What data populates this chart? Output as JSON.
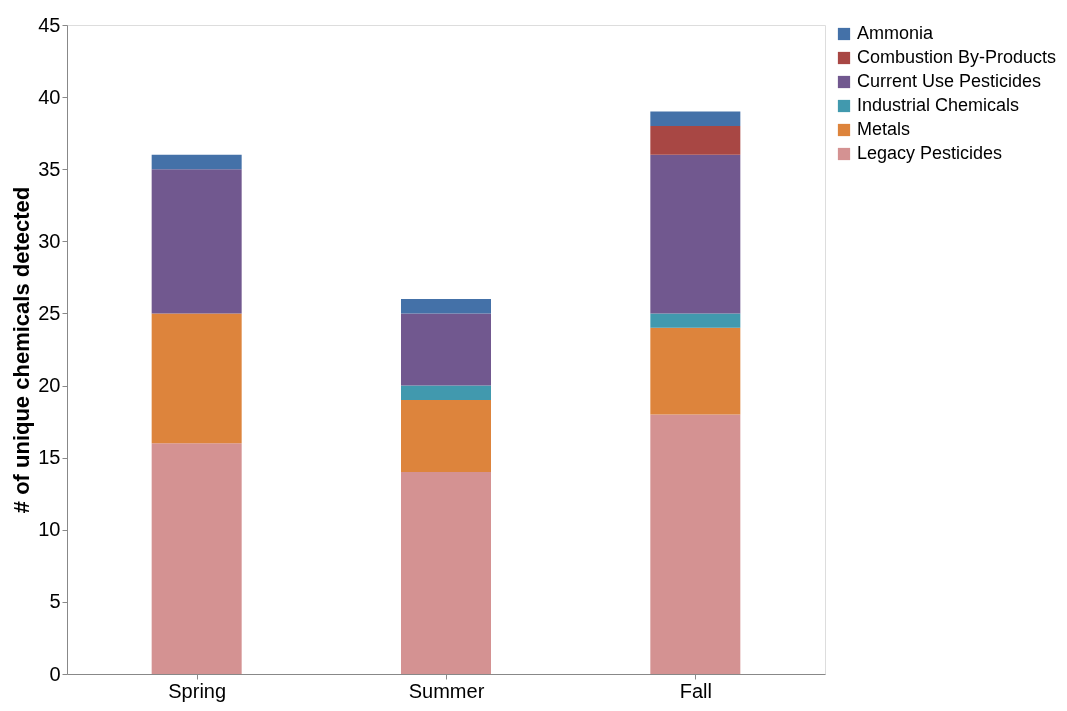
{
  "chart_data": {
    "type": "bar",
    "stacked": true,
    "ylabel": "# of unique chemicals detected",
    "categories": [
      "Spring",
      "Summer",
      "Fall"
    ],
    "series": [
      {
        "name": "Legacy Pesticides",
        "color": "#d49292",
        "values": [
          16,
          14,
          18
        ]
      },
      {
        "name": "Metals",
        "color": "#dd843c",
        "values": [
          9,
          5,
          6
        ]
      },
      {
        "name": "Industrial Chemicals",
        "color": "#4199ae",
        "values": [
          0,
          1,
          1
        ]
      },
      {
        "name": "Current Use Pesticides",
        "color": "#71588f",
        "values": [
          10,
          5,
          11
        ]
      },
      {
        "name": "Combustion By-Products",
        "color": "#a84744",
        "values": [
          0,
          0,
          2
        ]
      },
      {
        "name": "Ammonia",
        "color": "#4471a8",
        "values": [
          1,
          1,
          1
        ]
      }
    ],
    "ylim": [
      0,
      45
    ],
    "yticks": [
      0,
      5,
      10,
      15,
      20,
      25,
      30,
      35,
      40,
      45
    ],
    "grid": false,
    "legend": "right"
  }
}
